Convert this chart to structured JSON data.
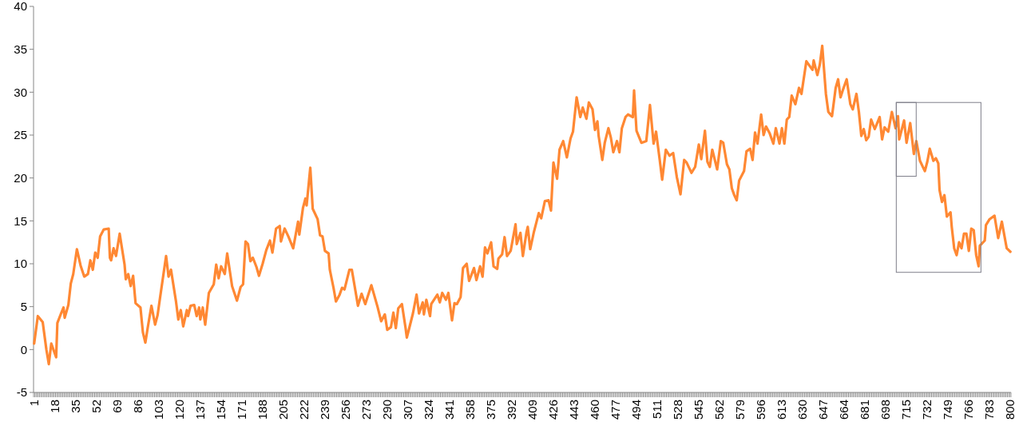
{
  "chart_data": {
    "type": "line",
    "xlim": [
      0.5,
      800.5
    ],
    "xticks": [
      1,
      18,
      35,
      52,
      69,
      86,
      103,
      120,
      137,
      154,
      171,
      188,
      205,
      222,
      239,
      256,
      273,
      290,
      307,
      324,
      341,
      358,
      375,
      392,
      409,
      426,
      443,
      460,
      477,
      494,
      511,
      528,
      545,
      562,
      579,
      596,
      613,
      630,
      647,
      664,
      681,
      698,
      715,
      732,
      749,
      766,
      783,
      800
    ],
    "ylim": [
      -5,
      40
    ],
    "yticks": [
      -5,
      0,
      5,
      10,
      15,
      20,
      25,
      30,
      35,
      40
    ],
    "grid": false,
    "series": [
      {
        "color": "#ff8833",
        "x": [
          1,
          4,
          8,
          11,
          13,
          15,
          19,
          20,
          23,
          25,
          26,
          29,
          31,
          33,
          36,
          39,
          42,
          45,
          47,
          49,
          51,
          53,
          55,
          58,
          62,
          63,
          64,
          66,
          68,
          71,
          75,
          76,
          78,
          80,
          82,
          84,
          88,
          90,
          92,
          94,
          97,
          100,
          102,
          104,
          109,
          111,
          113,
          117,
          119,
          121,
          123,
          126,
          127,
          129,
          132,
          134,
          136,
          137,
          139,
          141,
          144,
          148,
          150,
          152,
          154,
          157,
          159,
          163,
          167,
          170,
          172,
          174,
          176,
          178,
          180,
          183,
          185,
          188,
          191,
          194,
          196,
          199,
          202,
          203,
          206,
          209,
          213,
          217,
          218,
          221,
          223,
          224,
          227,
          229,
          233,
          235,
          237,
          239,
          242,
          243,
          246,
          248,
          251,
          253,
          255,
          259,
          261,
          264,
          266,
          269,
          272,
          277,
          282,
          285,
          288,
          290,
          293,
          295,
          297,
          299,
          302,
          305,
          306,
          308,
          311,
          314,
          316,
          319,
          320,
          322,
          325,
          326,
          331,
          333,
          335,
          338,
          340,
          343,
          345,
          347,
          350,
          352,
          355,
          357,
          361,
          363,
          366,
          368,
          370,
          372,
          375,
          377,
          380,
          381,
          384,
          386,
          388,
          391,
          395,
          396,
          399,
          401,
          404,
          405,
          407,
          410,
          414,
          416,
          419,
          422,
          424,
          426,
          429,
          431,
          434,
          437,
          440,
          442,
          445,
          448,
          450,
          453,
          455,
          458,
          460,
          462,
          463,
          466,
          468,
          471,
          473,
          475,
          478,
          480,
          482,
          485,
          487,
          491,
          492,
          494,
          498,
          502,
          505,
          508,
          510,
          513,
          515,
          518,
          521,
          524,
          527,
          530,
          533,
          535,
          539,
          542,
          545,
          547,
          550,
          552,
          554,
          556,
          560,
          563,
          565,
          568,
          570,
          572,
          574,
          576,
          578,
          582,
          584,
          587,
          589,
          591,
          593,
          596,
          598,
          600,
          603,
          606,
          608,
          611,
          613,
          615,
          617,
          619,
          621,
          624,
          627,
          629,
          633,
          636,
          638,
          639,
          642,
          644,
          646,
          649,
          651,
          654,
          657,
          659,
          661,
          663,
          666,
          669,
          671,
          674,
          676,
          678,
          680,
          682,
          684,
          686,
          689,
          693,
          695,
          697,
          700,
          703,
          706,
          708,
          709,
          713,
          715,
          718,
          721,
          723,
          726,
          730,
          732,
          734,
          737,
          739,
          741,
          742,
          744,
          746,
          748,
          751,
          752,
          754,
          756,
          758,
          760,
          762,
          764,
          766,
          768,
          770,
          772,
          774,
          775,
          779,
          780,
          783,
          787,
          790,
          793,
          797,
          800
        ],
        "values": [
          0.7,
          3.9,
          3.2,
          0,
          -1.7,
          0.7,
          -0.9,
          3.1,
          4.2,
          4.9,
          3.7,
          5.2,
          7.7,
          8.8,
          11.7,
          9.8,
          8.5,
          8.8,
          10.4,
          9.3,
          11.3,
          10.7,
          13.2,
          14,
          14.1,
          10.7,
          10.4,
          11.8,
          10.9,
          13.5,
          9.9,
          8.2,
          8.8,
          7.4,
          8.6,
          5.4,
          4.9,
          2,
          0.8,
          2.6,
          5.1,
          2.9,
          4,
          6,
          10.9,
          8.5,
          9.3,
          5.7,
          3.5,
          4.6,
          2.7,
          4.6,
          3.9,
          5.1,
          5.2,
          3.9,
          4.9,
          3.5,
          4.9,
          2.9,
          6.6,
          7.6,
          9.9,
          8.3,
          9.7,
          8.8,
          11.2,
          7.4,
          5.7,
          7.3,
          7.6,
          12.6,
          12.3,
          10.3,
          10.7,
          9.6,
          8.6,
          10,
          11.6,
          12.7,
          11.3,
          14.1,
          14.4,
          12.6,
          14.1,
          13.2,
          11.8,
          14.9,
          13.4,
          16.5,
          17.6,
          16.8,
          21.2,
          16.4,
          15.2,
          13.3,
          13.2,
          11.5,
          11.2,
          9.3,
          7.2,
          5.6,
          6.4,
          7.2,
          7,
          9.3,
          9.3,
          6.8,
          5.1,
          6.5,
          5.3,
          7.5,
          5,
          3.3,
          4.1,
          2.3,
          2.6,
          4.3,
          2.5,
          4.8,
          5.3,
          2.5,
          1.4,
          2.5,
          4.2,
          6.4,
          4.2,
          5.5,
          4.1,
          5.8,
          3.9,
          5.3,
          6.4,
          5.5,
          6.6,
          5.8,
          6.6,
          3.4,
          5.4,
          5.3,
          6.1,
          9.5,
          10,
          8,
          9.5,
          8.1,
          9.7,
          8.5,
          11.9,
          11.2,
          12.5,
          9.7,
          9.4,
          10.6,
          11.1,
          13.1,
          10.9,
          11.5,
          14.6,
          12.3,
          13.6,
          10.9,
          13.7,
          14.3,
          11.7,
          13.7,
          15.9,
          15.3,
          17.3,
          17.4,
          16.2,
          21.8,
          19.9,
          23.3,
          24.3,
          22.4,
          24.6,
          25.4,
          29.4,
          27.1,
          28.2,
          26.9,
          28.8,
          28,
          25.6,
          26.6,
          24.9,
          22.1,
          24.1,
          25.8,
          24.7,
          23,
          24.3,
          23,
          25.8,
          27.1,
          27.4,
          27.1,
          30.2,
          25.5,
          24.1,
          24.3,
          28.5,
          24,
          25.4,
          22.1,
          19.8,
          23.3,
          22.6,
          22.9,
          20.1,
          18.1,
          22.1,
          21.8,
          20.6,
          21.3,
          23.9,
          22.2,
          25.5,
          21.9,
          21.3,
          23.3,
          21,
          24.3,
          24.1,
          21.6,
          21,
          18.8,
          18,
          17.4,
          19.7,
          20.8,
          23.1,
          23.4,
          22.1,
          25.3,
          24,
          27.4,
          25,
          26,
          25.2,
          24,
          25.8,
          24,
          25.8,
          24,
          26.8,
          27.1,
          29.6,
          28.6,
          30.5,
          29.8,
          33.6,
          33,
          32.6,
          33.7,
          32,
          33.2,
          35.4,
          29.8,
          27.7,
          27.2,
          30.5,
          31.5,
          29.4,
          30.3,
          31.5,
          28.6,
          28,
          29.8,
          27.7,
          24.9,
          25.7,
          24.4,
          24.8,
          26.8,
          25.7,
          27.1,
          24.5,
          25.9,
          25.4,
          27.7,
          25.8,
          27.2,
          24.5,
          26.7,
          24.1,
          26.4,
          22.8,
          24.3,
          22,
          20.8,
          21.9,
          23.4,
          22,
          22.3,
          21.7,
          18.6,
          17.2,
          18,
          15.5,
          16,
          14.3,
          11.8,
          11,
          12.5,
          11.8,
          13.5,
          13.5,
          11.5,
          14.1,
          13.9,
          11,
          9.7,
          12.1,
          12.7,
          14.5,
          15.2,
          15.6,
          13,
          14.9,
          11.8,
          11.4
        ]
      }
    ]
  }
}
